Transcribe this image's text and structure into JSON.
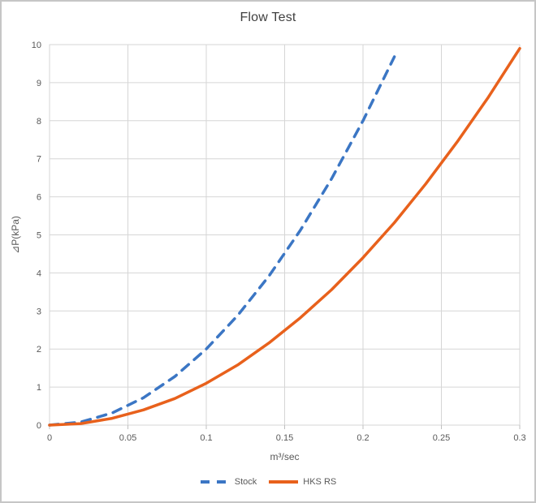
{
  "chart_data": {
    "type": "line",
    "title": "Flow Test",
    "xlabel": "m³/sec",
    "ylabel": "⊿P(kPa)",
    "xlim": [
      0,
      0.3
    ],
    "ylim": [
      0,
      10
    ],
    "x_ticks": [
      0,
      0.05,
      0.1,
      0.15,
      0.2,
      0.25,
      0.3
    ],
    "x_tick_labels": [
      "0",
      "0.05",
      "0.1",
      "0.15",
      "0.2",
      "0.25",
      "0.3"
    ],
    "y_ticks": [
      0,
      1,
      2,
      3,
      4,
      5,
      6,
      7,
      8,
      9,
      10
    ],
    "y_tick_labels": [
      "0",
      "1",
      "2",
      "3",
      "4",
      "5",
      "6",
      "7",
      "8",
      "9",
      "10"
    ],
    "grid": true,
    "legend_position": "bottom",
    "colors": {
      "stock_blue": "#3b76c4",
      "hks_orange": "#e8611c",
      "gridline": "#d6d6d6",
      "tick_text": "#595959",
      "title_text": "#404040"
    },
    "series": [
      {
        "name": "Stock",
        "color": "#3b76c4",
        "style": "dashed",
        "x": [
          0,
          0.02,
          0.04,
          0.06,
          0.08,
          0.1,
          0.12,
          0.14,
          0.16,
          0.18,
          0.2,
          0.22
        ],
        "y": [
          0,
          0.08,
          0.32,
          0.72,
          1.28,
          2.0,
          2.88,
          3.92,
          5.12,
          6.48,
          8.0,
          9.68
        ]
      },
      {
        "name": "HKS RS",
        "color": "#e8611c",
        "style": "solid",
        "x": [
          0,
          0.02,
          0.04,
          0.06,
          0.08,
          0.1,
          0.12,
          0.14,
          0.16,
          0.18,
          0.2,
          0.22,
          0.24,
          0.26,
          0.28,
          0.3
        ],
        "y": [
          0,
          0.04,
          0.18,
          0.4,
          0.7,
          1.1,
          1.58,
          2.16,
          2.82,
          3.56,
          4.4,
          5.32,
          6.34,
          7.44,
          8.62,
          9.9
        ]
      }
    ]
  }
}
